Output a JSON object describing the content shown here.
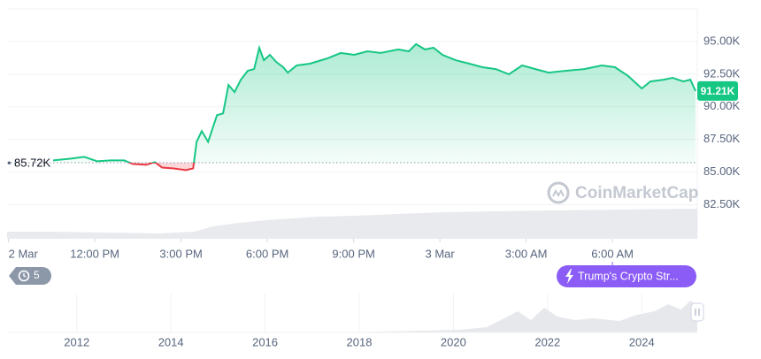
{
  "chart_data": {
    "type": "line",
    "x": [
      10.55,
      11.17,
      11.63,
      12.09,
      12.55,
      13.02,
      13.32,
      13.78,
      14.09,
      14.34,
      14.71,
      15.17,
      15.42,
      15.54,
      15.72,
      15.94,
      16.25,
      16.46,
      16.65,
      16.86,
      17.08,
      17.32,
      17.54,
      17.72,
      17.88,
      18.09,
      18.31,
      18.55,
      18.71,
      19.02,
      19.48,
      20.09,
      20.55,
      21.02,
      21.48,
      21.94,
      22.55,
      22.92,
      23.17,
      23.48,
      23.78,
      24.09,
      24.55,
      25.02,
      25.48,
      25.94,
      26.4,
      26.86,
      27.32,
      27.78,
      28.4,
      29.02,
      29.63,
      30.09,
      30.55,
      31.02,
      31.32,
      31.78,
      32.09,
      32.46,
      32.71,
      32.89
    ],
    "values": [
      85900,
      86030,
      86170,
      85830,
      85900,
      85900,
      85630,
      85560,
      85760,
      85350,
      85290,
      85150,
      85290,
      87320,
      88140,
      87320,
      89360,
      89500,
      91670,
      91130,
      92080,
      92760,
      92890,
      94520,
      93570,
      93980,
      93440,
      93030,
      92620,
      93170,
      93300,
      93710,
      94120,
      93980,
      94250,
      94120,
      94390,
      94250,
      94800,
      94390,
      94520,
      93980,
      93570,
      93300,
      93030,
      92890,
      92490,
      93170,
      92890,
      92620,
      92760,
      92890,
      93170,
      93030,
      92350,
      91400,
      91940,
      92080,
      92220,
      91940,
      92080,
      91210
    ],
    "color": "#16c784",
    "down_color": "#ea3943",
    "xlim": [
      8.95,
      32.95
    ],
    "xticks": [
      {
        "value": 9,
        "label": "2 Mar"
      },
      {
        "value": 12,
        "label": "12:00 PM"
      },
      {
        "value": 15,
        "label": "3:00 PM"
      },
      {
        "value": 18,
        "label": "6:00 PM"
      },
      {
        "value": 21,
        "label": "9:00 PM"
      },
      {
        "value": 24,
        "label": "3 Mar"
      },
      {
        "value": 27,
        "label": "3:00 AM"
      },
      {
        "value": 30,
        "label": "6:00 AM"
      }
    ],
    "ylim": [
      79900,
      97500
    ],
    "yticks": [
      {
        "value": 82500,
        "label": "82.50K"
      },
      {
        "value": 85000,
        "label": "85.00K"
      },
      {
        "value": 87500,
        "label": "87.50K"
      },
      {
        "value": 90000,
        "label": "90.00K"
      },
      {
        "value": 92500,
        "label": "92.50K"
      },
      {
        "value": 95000,
        "label": "95.00K"
      }
    ],
    "grid": true,
    "baseline": {
      "value": 85720,
      "label": "85.72K"
    },
    "last_price": {
      "value": 91210,
      "label": "91.21K"
    },
    "watermark": "CoinMarketCap",
    "history_badge": "5",
    "event": {
      "value": 30,
      "label": "Trump's Crypto Str..."
    },
    "navigator": {
      "xlim": [
        2010.52,
        2025.18
      ],
      "xticks": [
        2012,
        2014,
        2016,
        2018,
        2020,
        2022,
        2024
      ]
    }
  }
}
